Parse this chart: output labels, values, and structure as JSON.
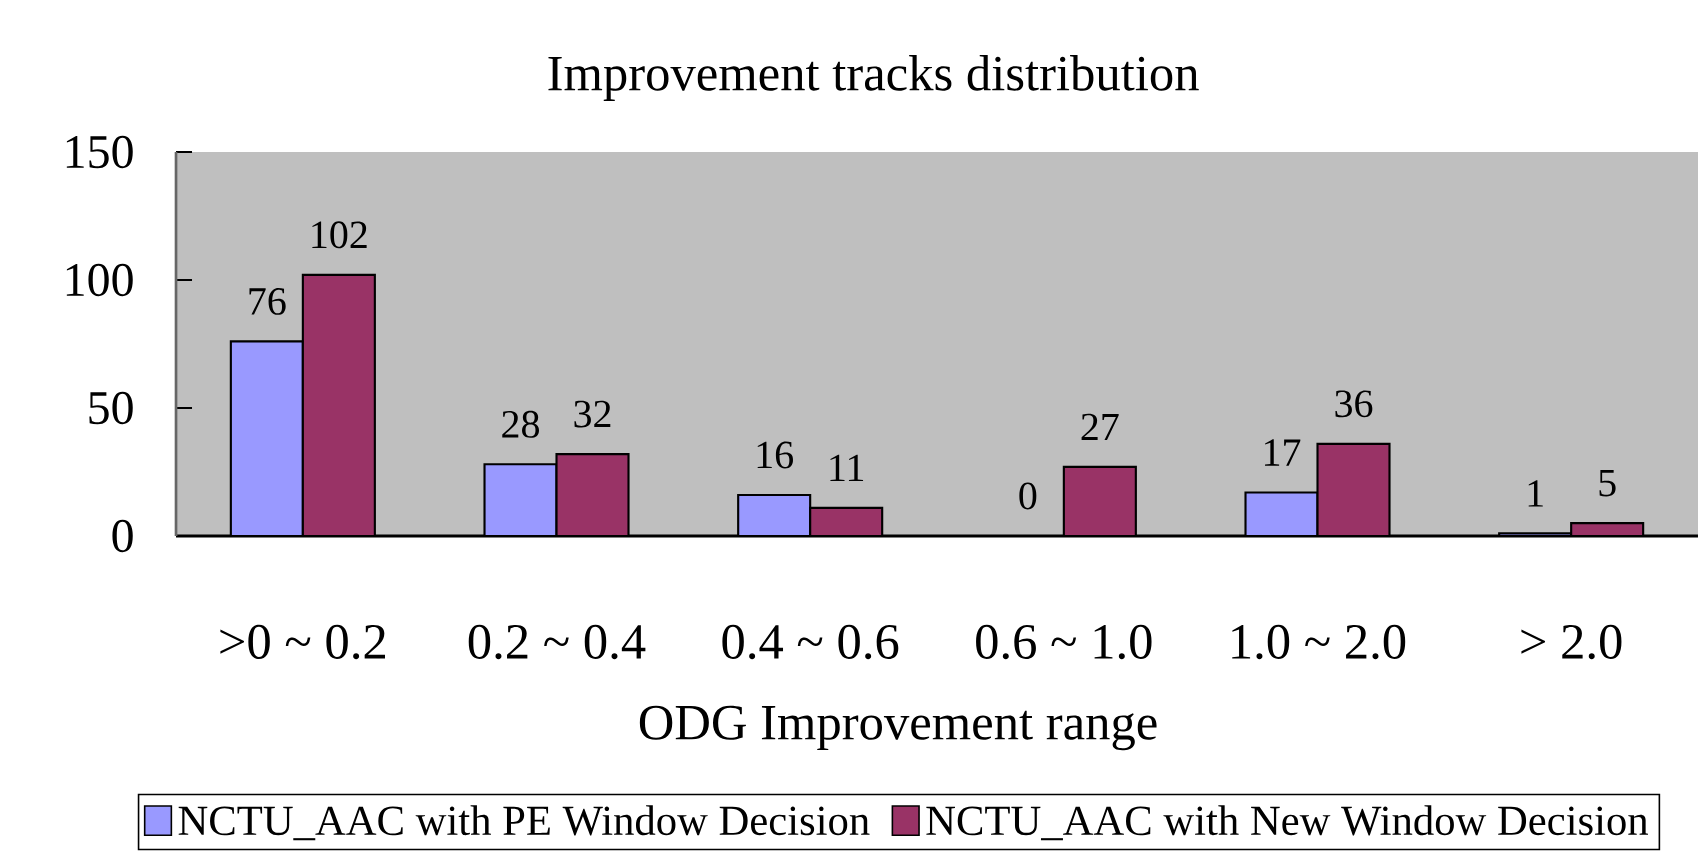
{
  "chart_data": {
    "type": "bar",
    "title": "Improvement tracks distribution",
    "xlabel": "ODG Improvement range",
    "categories": [
      ">0 ~ 0.2",
      "0.2 ~ 0.4",
      "0.4 ~ 0.6",
      "0.6 ~ 1.0",
      "1.0 ~ 2.0",
      "> 2.0"
    ],
    "series": [
      {
        "name": "NCTU_AAC with PE Window Decision",
        "color": "#9999ff",
        "values": [
          76,
          28,
          16,
          0,
          17,
          1
        ]
      },
      {
        "name": "NCTU_AAC with New Window Decision",
        "color": "#993366",
        "values": [
          102,
          32,
          11,
          27,
          36,
          5
        ]
      }
    ],
    "ylim": [
      0,
      150
    ],
    "yticks": [
      0,
      50,
      100,
      150
    ],
    "data_labels": true,
    "legend": "bottom"
  }
}
